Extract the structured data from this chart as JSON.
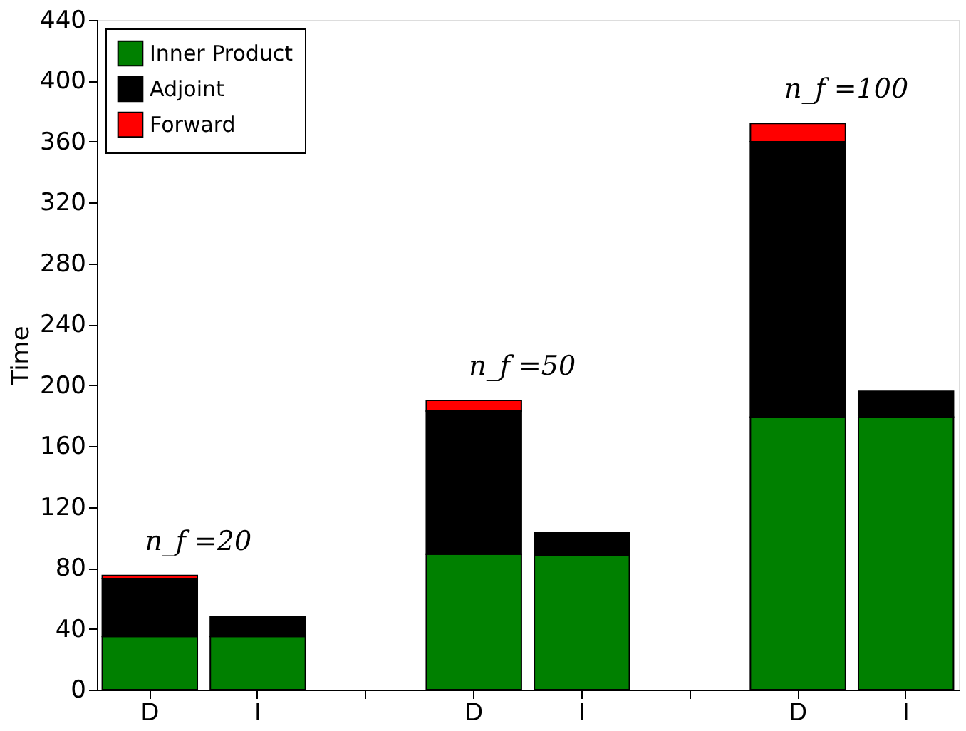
{
  "chart_data": {
    "type": "bar",
    "stacked": true,
    "ylabel": "Time",
    "categories": [
      "D",
      "I",
      null,
      "D",
      "I",
      null,
      "D",
      "I"
    ],
    "series": [
      {
        "name": "Inner Product",
        "color": "#008000",
        "values": [
          35,
          35,
          null,
          89,
          88,
          null,
          179,
          179
        ]
      },
      {
        "name": "Adjoint",
        "color": "#000000",
        "values": [
          38,
          13,
          null,
          94,
          15,
          null,
          181,
          17
        ]
      },
      {
        "name": "Forward",
        "color": "#ff0000",
        "values": [
          2,
          null,
          null,
          7,
          null,
          null,
          12,
          null
        ]
      }
    ],
    "ylim": [
      0,
      440
    ],
    "yticks": [
      0,
      40,
      80,
      120,
      160,
      200,
      240,
      280,
      320,
      360,
      400,
      440
    ],
    "annotations": [
      "n_f =20",
      "n_f =50",
      "n_f =100"
    ],
    "legend": "top left",
    "grid": false
  }
}
